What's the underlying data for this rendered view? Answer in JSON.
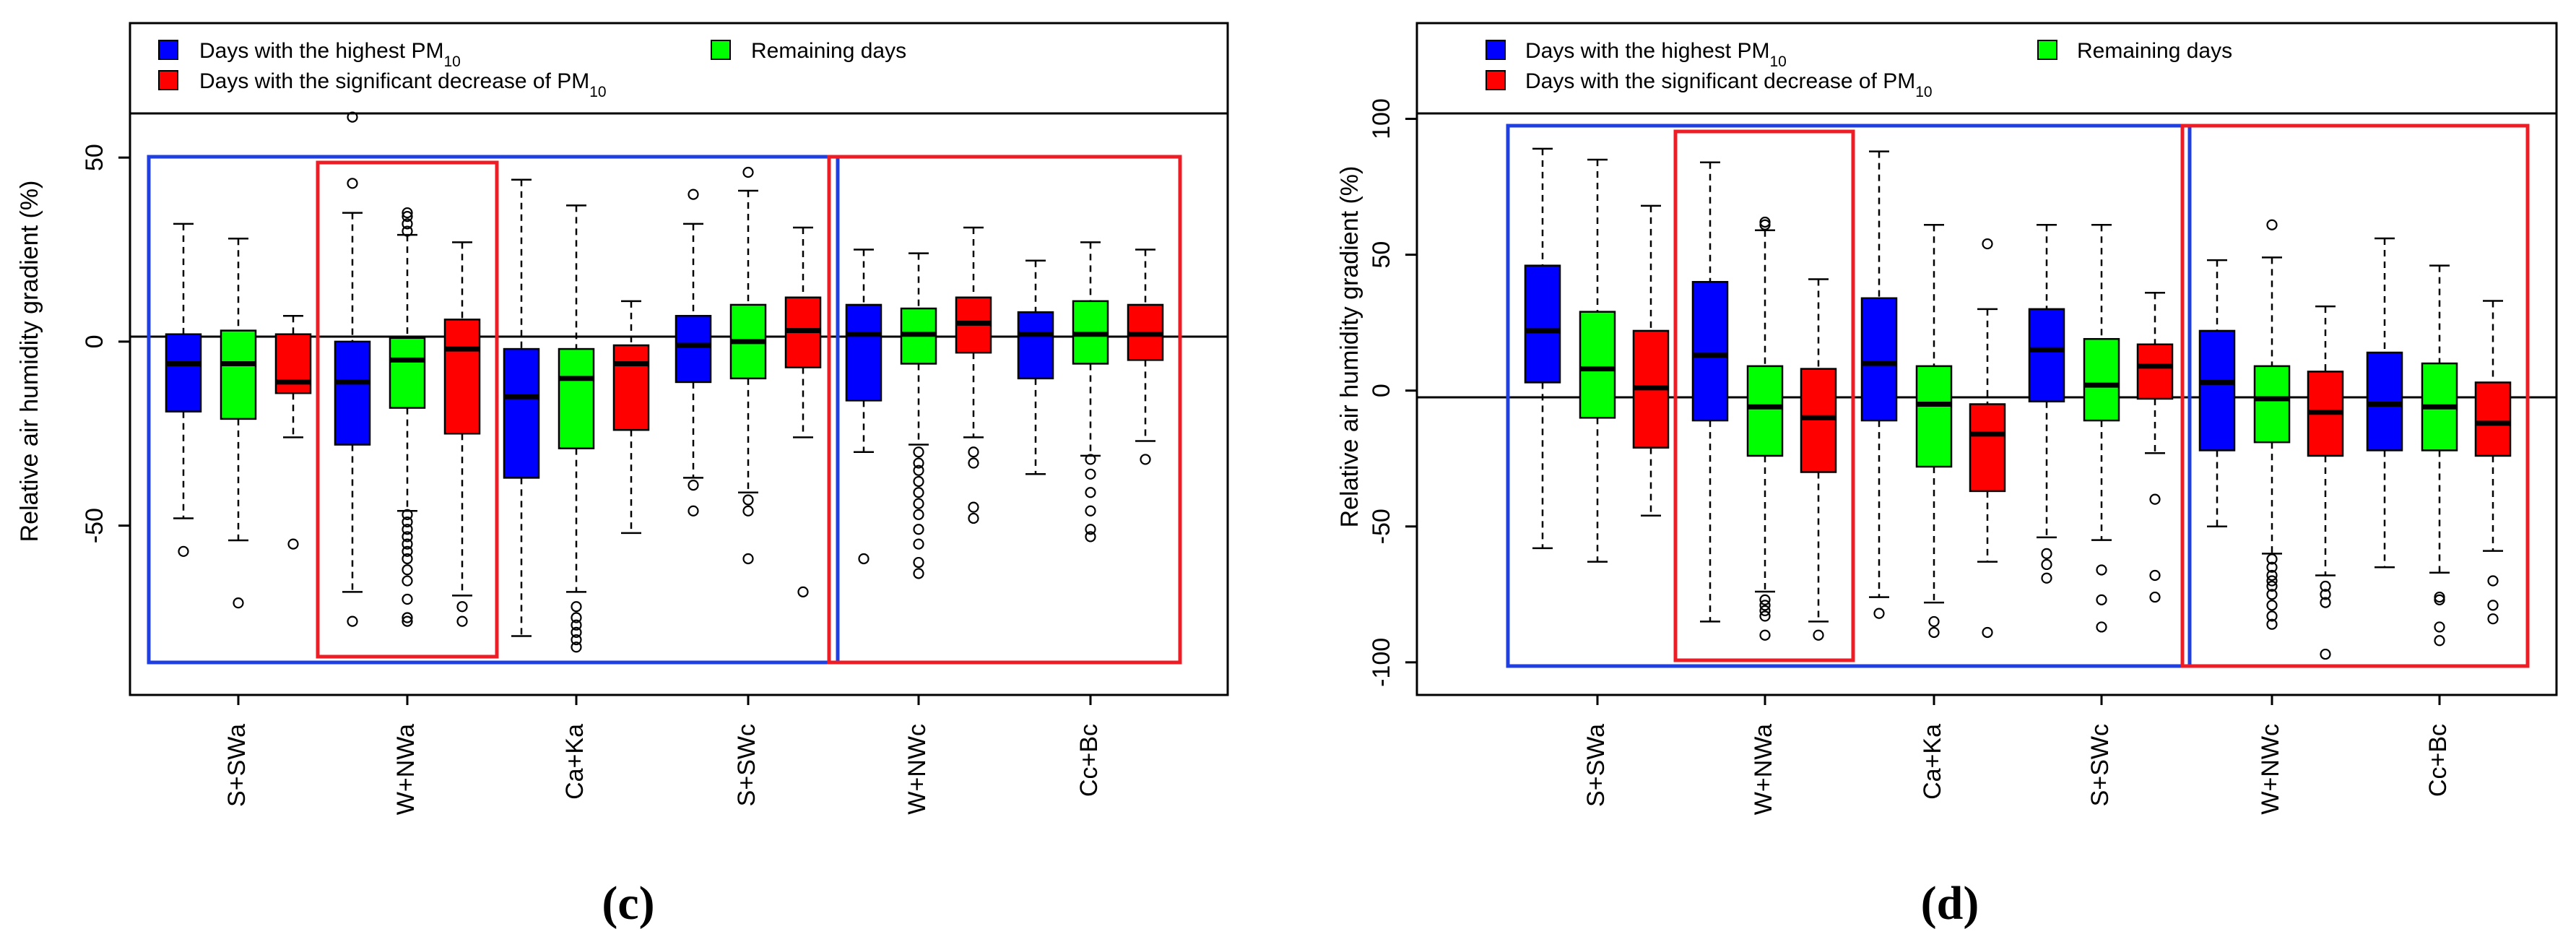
{
  "colors": {
    "highest": "#0000ff",
    "decrease": "#ff0000",
    "remaining": "#00ff00",
    "frame_blue": "#1f3fe0",
    "frame_red": "#ee1c25",
    "axis": "#000000"
  },
  "legend": {
    "highest_prefix": "Days with the highest PM",
    "highest_sub": "10",
    "decrease_prefix": "Days with the significant decrease of PM",
    "decrease_sub": "10",
    "remaining": "Remaining days"
  },
  "chart_data": [
    {
      "type": "boxplot",
      "panel": "(c)",
      "panel_letter": "c",
      "ylabel": "Relative air humidity gradient (%)",
      "ylim": [
        -96,
        62
      ],
      "yticks": [
        {
          "value": 50,
          "label": "50"
        },
        {
          "value": 0,
          "label": "0"
        },
        {
          "value": -50,
          "label": "-50"
        }
      ],
      "categories": [
        "S+SWa",
        "W+NWa",
        "Ca+Ka",
        "S+SWc",
        "W+NWc",
        "Cc+Bc"
      ],
      "series_names": [
        "Days with the highest PM10",
        "Days with the significant decrease of PM10",
        "Remaining days"
      ],
      "frames": [
        {
          "color": "blue",
          "groups": [
            0,
            3
          ]
        },
        {
          "color": "red",
          "groups": [
            1,
            1
          ]
        },
        {
          "color": "red",
          "groups": [
            4,
            5
          ]
        }
      ],
      "groups": [
        [
          {
            "series": "highest",
            "q1": -19,
            "median": -6,
            "q3": 2,
            "low": -48,
            "high": 32,
            "outliers": [
              -57
            ]
          },
          {
            "series": "remaining",
            "q1": -21,
            "median": -6,
            "q3": 3,
            "low": -54,
            "high": 28,
            "outliers": [
              -71
            ]
          },
          {
            "series": "decrease",
            "q1": -14,
            "median": -11,
            "q3": 2,
            "low": -26,
            "high": 7,
            "outliers": [
              -55
            ]
          }
        ],
        [
          {
            "series": "highest",
            "q1": -28,
            "median": -11,
            "q3": 0,
            "low": -68,
            "high": 35,
            "outliers": [
              -76,
              43,
              61
            ]
          },
          {
            "series": "remaining",
            "q1": -18,
            "median": -5,
            "q3": 1,
            "low": -46,
            "high": 29,
            "outliers": [
              -76,
              -75,
              -70,
              -65,
              -62,
              -59,
              -57,
              -55,
              -53,
              -51,
              -49,
              -47,
              30,
              32,
              34,
              35
            ]
          },
          {
            "series": "decrease",
            "q1": -25,
            "median": -2,
            "q3": 6,
            "low": -69,
            "high": 27,
            "outliers": [
              -72,
              -76
            ]
          }
        ],
        [
          {
            "series": "highest",
            "q1": -37,
            "median": -15,
            "q3": -2,
            "low": -80,
            "high": 44,
            "outliers": []
          },
          {
            "series": "remaining",
            "q1": -29,
            "median": -10,
            "q3": -2,
            "low": -68,
            "high": 37,
            "outliers": [
              -72,
              -75,
              -77,
              -79,
              -81,
              -83
            ]
          },
          {
            "series": "decrease",
            "q1": -24,
            "median": -6,
            "q3": -1,
            "low": -52,
            "high": 11,
            "outliers": []
          }
        ],
        [
          {
            "series": "highest",
            "q1": -11,
            "median": -1,
            "q3": 7,
            "low": -37,
            "high": 32,
            "outliers": [
              -39,
              -46,
              40
            ]
          },
          {
            "series": "remaining",
            "q1": -10,
            "median": 0,
            "q3": 10,
            "low": -41,
            "high": 41,
            "outliers": [
              -43,
              -46,
              -59,
              46
            ]
          },
          {
            "series": "decrease",
            "q1": -7,
            "median": 3,
            "q3": 12,
            "low": -26,
            "high": 31,
            "outliers": [
              -68
            ]
          }
        ],
        [
          {
            "series": "highest",
            "q1": -16,
            "median": 2,
            "q3": 10,
            "low": -30,
            "high": 25,
            "outliers": [
              -59
            ]
          },
          {
            "series": "remaining",
            "q1": -6,
            "median": 2,
            "q3": 9,
            "low": -28,
            "high": 24,
            "outliers": [
              -30,
              -33,
              -35,
              -38,
              -41,
              -44,
              -47,
              -51,
              -55,
              -60,
              -63
            ]
          },
          {
            "series": "decrease",
            "q1": -3,
            "median": 5,
            "q3": 12,
            "low": -26,
            "high": 31,
            "outliers": [
              -30,
              -33,
              -45,
              -48
            ]
          }
        ],
        [
          {
            "series": "highest",
            "q1": -10,
            "median": 2,
            "q3": 8,
            "low": -36,
            "high": 22,
            "outliers": []
          },
          {
            "series": "remaining",
            "q1": -6,
            "median": 2,
            "q3": 11,
            "low": -31,
            "high": 27,
            "outliers": [
              -32,
              -36,
              -41,
              -46,
              -51,
              -53
            ]
          },
          {
            "series": "decrease",
            "q1": -5,
            "median": 2,
            "q3": 10,
            "low": -27,
            "high": 25,
            "outliers": [
              -32
            ]
          }
        ]
      ]
    },
    {
      "type": "boxplot",
      "panel": "(d)",
      "panel_letter": "d",
      "ylabel": "Relative air humidity gradient (%)",
      "ylim": [
        -112,
        102
      ],
      "yticks": [
        {
          "value": 100,
          "label": "100"
        },
        {
          "value": 50,
          "label": "50"
        },
        {
          "value": 0,
          "label": "0"
        },
        {
          "value": -50,
          "label": "-50"
        },
        {
          "value": -100,
          "label": "-100"
        }
      ],
      "categories": [
        "S+SWa",
        "W+NWa",
        "Ca+Ka",
        "S+SWc",
        "W+NWc",
        "Cc+Bc"
      ],
      "series_names": [
        "Days with the highest PM10",
        "Days with the significant decrease of PM10",
        "Remaining days"
      ],
      "frames": [
        {
          "color": "blue",
          "groups": [
            0,
            3
          ]
        },
        {
          "color": "red",
          "groups": [
            1,
            1
          ]
        },
        {
          "color": "red",
          "groups": [
            4,
            5
          ]
        }
      ],
      "groups": [
        [
          {
            "series": "highest",
            "q1": 3,
            "median": 22,
            "q3": 46,
            "low": -58,
            "high": 89,
            "outliers": []
          },
          {
            "series": "remaining",
            "q1": -10,
            "median": 8,
            "q3": 29,
            "low": -63,
            "high": 85,
            "outliers": []
          },
          {
            "series": "decrease",
            "q1": -21,
            "median": 1,
            "q3": 22,
            "low": -46,
            "high": 68,
            "outliers": []
          }
        ],
        [
          {
            "series": "highest",
            "q1": -11,
            "median": 13,
            "q3": 40,
            "low": -85,
            "high": 84,
            "outliers": []
          },
          {
            "series": "remaining",
            "q1": -24,
            "median": -6,
            "q3": 9,
            "low": -74,
            "high": 59,
            "outliers": [
              -77,
              -79,
              -81,
              -83,
              -90,
              61,
              62
            ]
          },
          {
            "series": "decrease",
            "q1": -30,
            "median": -10,
            "q3": 8,
            "low": -85,
            "high": 41,
            "outliers": [
              -90
            ]
          }
        ],
        [
          {
            "series": "highest",
            "q1": -11,
            "median": 10,
            "q3": 34,
            "low": -76,
            "high": 88,
            "outliers": [
              -82
            ]
          },
          {
            "series": "remaining",
            "q1": -28,
            "median": -5,
            "q3": 9,
            "low": -78,
            "high": 61,
            "outliers": [
              -85,
              -89
            ]
          },
          {
            "series": "decrease",
            "q1": -37,
            "median": -16,
            "q3": -5,
            "low": -63,
            "high": 30,
            "outliers": [
              -89,
              54
            ]
          }
        ],
        [
          {
            "series": "highest",
            "q1": -4,
            "median": 15,
            "q3": 30,
            "low": -54,
            "high": 61,
            "outliers": [
              -60,
              -64,
              -69
            ]
          },
          {
            "series": "remaining",
            "q1": -11,
            "median": 2,
            "q3": 19,
            "low": -55,
            "high": 61,
            "outliers": [
              -66,
              -77,
              -87
            ]
          },
          {
            "series": "decrease",
            "q1": -3,
            "median": 9,
            "q3": 17,
            "low": -23,
            "high": 36,
            "outliers": [
              -40,
              -68,
              -76
            ]
          }
        ],
        [
          {
            "series": "highest",
            "q1": -22,
            "median": 3,
            "q3": 22,
            "low": -50,
            "high": 48,
            "outliers": []
          },
          {
            "series": "remaining",
            "q1": -19,
            "median": -3,
            "q3": 9,
            "low": -60,
            "high": 49,
            "outliers": [
              -62,
              -65,
              -68,
              -70,
              -72,
              -75,
              -79,
              -83,
              -86,
              61
            ]
          },
          {
            "series": "decrease",
            "q1": -24,
            "median": -8,
            "q3": 7,
            "low": -68,
            "high": 31,
            "outliers": [
              -72,
              -75,
              -78,
              -97
            ]
          }
        ],
        [
          {
            "series": "highest",
            "q1": -22,
            "median": -5,
            "q3": 14,
            "low": -65,
            "high": 56,
            "outliers": []
          },
          {
            "series": "remaining",
            "q1": -22,
            "median": -6,
            "q3": 10,
            "low": -67,
            "high": 46,
            "outliers": [
              -76,
              -77,
              -87,
              -92
            ]
          },
          {
            "series": "decrease",
            "q1": -24,
            "median": -12,
            "q3": 3,
            "low": -59,
            "high": 33,
            "outliers": [
              -70,
              -79,
              -84
            ]
          }
        ]
      ]
    }
  ]
}
